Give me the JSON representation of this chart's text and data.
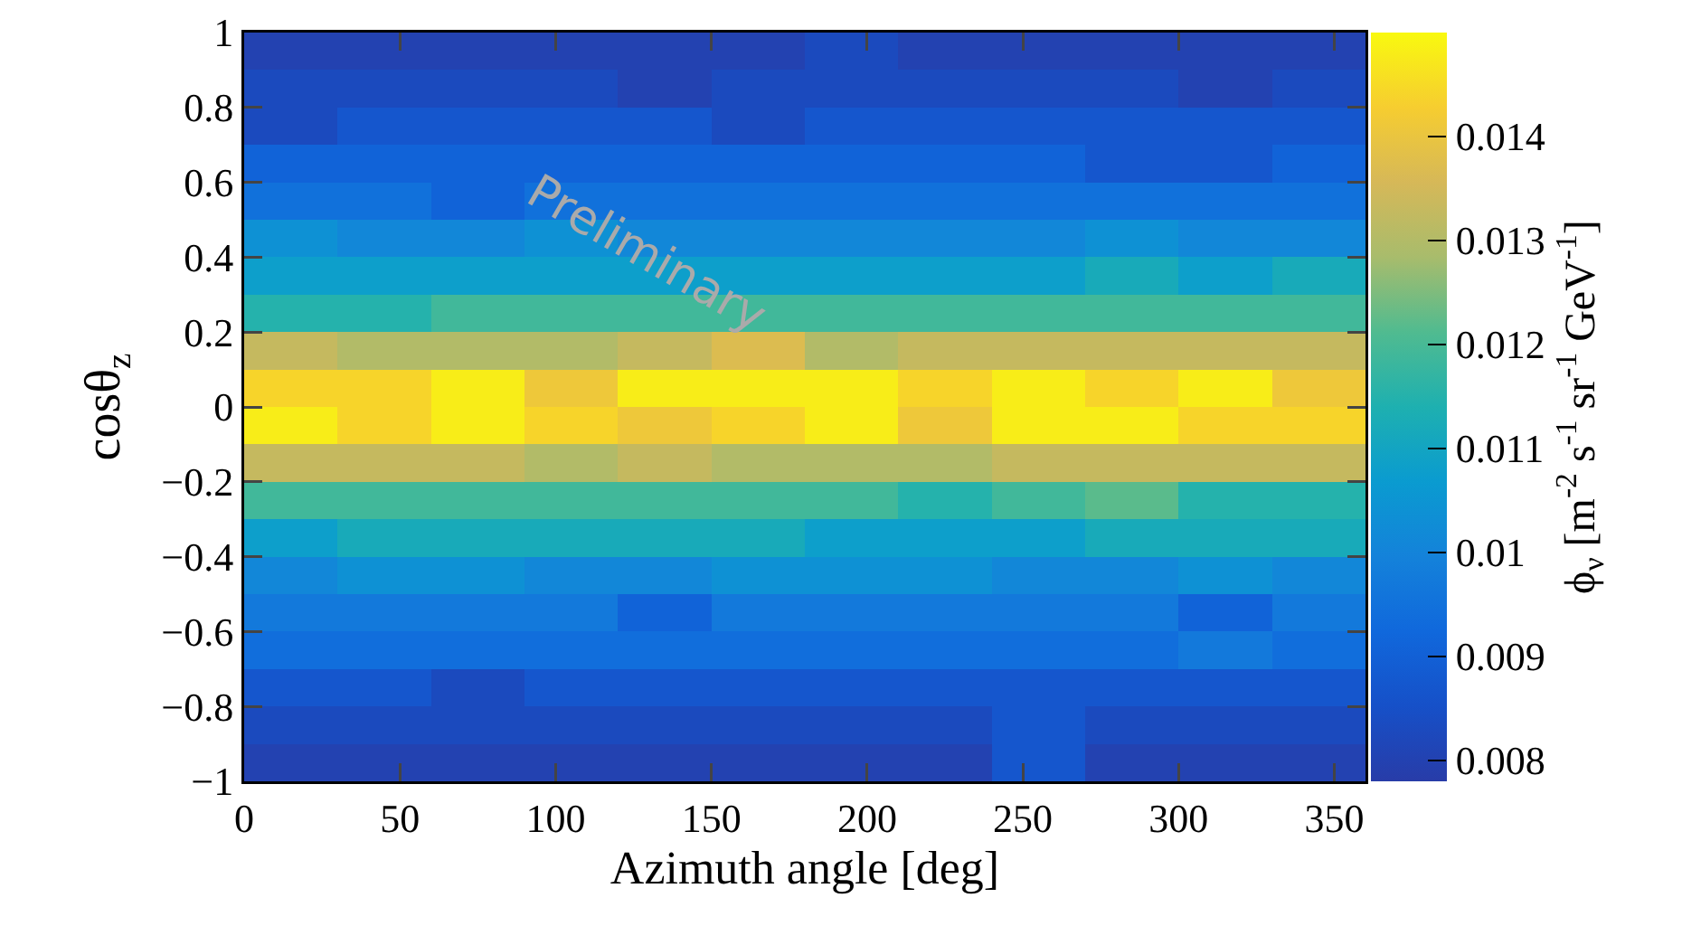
{
  "chart_data": {
    "type": "heatmap",
    "xlabel": "Azimuth angle [deg]",
    "ylabel": "cosθ$_{z}$",
    "clabel": "ϕ$_{ν}$ [m$^{-2}$ s$^{-1}$ sr$^{-1}$ GeV$^{-1}$]",
    "annotations": [
      "Preliminary"
    ],
    "xlim": [
      0,
      360
    ],
    "xticks": [
      0,
      50,
      100,
      150,
      200,
      250,
      300,
      350
    ],
    "ylim": [
      -1,
      1
    ],
    "yticks": [
      -1,
      -0.8,
      -0.6,
      -0.4,
      -0.2,
      0,
      0.2,
      0.4,
      0.6,
      0.8,
      1
    ],
    "clim": [
      0.0078,
      0.015
    ],
    "cticks": [
      0.008,
      0.009,
      0.01,
      0.011,
      0.012,
      0.013,
      0.014
    ],
    "cells": [
      [
        0.008,
        0.008,
        0.008,
        0.008,
        0.008,
        0.008,
        0.0083,
        0.008,
        0.008,
        0.008,
        0.008,
        0.008
      ],
      [
        0.0083,
        0.0083,
        0.0083,
        0.0083,
        0.008,
        0.0083,
        0.0083,
        0.0083,
        0.0083,
        0.0083,
        0.008,
        0.0083
      ],
      [
        0.0083,
        0.0087,
        0.0087,
        0.0087,
        0.0087,
        0.0083,
        0.0087,
        0.0087,
        0.0087,
        0.0087,
        0.0087,
        0.0087
      ],
      [
        0.0091,
        0.0091,
        0.0091,
        0.0091,
        0.0091,
        0.0091,
        0.0091,
        0.0091,
        0.0091,
        0.0087,
        0.0087,
        0.0091
      ],
      [
        0.0095,
        0.0095,
        0.0091,
        0.0095,
        0.0095,
        0.0095,
        0.0095,
        0.0095,
        0.0095,
        0.0095,
        0.0095,
        0.0095
      ],
      [
        0.0104,
        0.0101,
        0.0101,
        0.0104,
        0.0101,
        0.0101,
        0.0101,
        0.0101,
        0.0101,
        0.0104,
        0.0101,
        0.0101
      ],
      [
        0.0108,
        0.0108,
        0.0108,
        0.0108,
        0.0108,
        0.0108,
        0.0108,
        0.0108,
        0.0108,
        0.0112,
        0.0108,
        0.0112
      ],
      [
        0.0115,
        0.0115,
        0.0119,
        0.0119,
        0.0119,
        0.0119,
        0.0119,
        0.0119,
        0.0119,
        0.0119,
        0.0119,
        0.0119
      ],
      [
        0.0133,
        0.013,
        0.013,
        0.013,
        0.0133,
        0.0137,
        0.013,
        0.0133,
        0.0133,
        0.0133,
        0.0133,
        0.0133
      ],
      [
        0.0144,
        0.0144,
        0.0148,
        0.0141,
        0.0148,
        0.0148,
        0.0148,
        0.0144,
        0.0148,
        0.0144,
        0.0148,
        0.0141
      ],
      [
        0.0148,
        0.0144,
        0.0148,
        0.0144,
        0.0141,
        0.0144,
        0.0148,
        0.0141,
        0.0148,
        0.0148,
        0.0144,
        0.0144
      ],
      [
        0.0133,
        0.0133,
        0.0133,
        0.013,
        0.0133,
        0.013,
        0.013,
        0.013,
        0.0133,
        0.0133,
        0.0133,
        0.0133
      ],
      [
        0.0119,
        0.0119,
        0.0119,
        0.0119,
        0.0119,
        0.0119,
        0.0119,
        0.0115,
        0.0119,
        0.0122,
        0.0115,
        0.0115
      ],
      [
        0.0108,
        0.0112,
        0.0112,
        0.0112,
        0.0112,
        0.0112,
        0.0108,
        0.0108,
        0.0108,
        0.0112,
        0.0112,
        0.0112
      ],
      [
        0.0101,
        0.0104,
        0.0104,
        0.0101,
        0.0101,
        0.0104,
        0.0104,
        0.0104,
        0.0101,
        0.0101,
        0.0104,
        0.0101
      ],
      [
        0.0097,
        0.0097,
        0.0097,
        0.0097,
        0.0091,
        0.0097,
        0.0097,
        0.0097,
        0.0097,
        0.0097,
        0.0091,
        0.0097
      ],
      [
        0.0094,
        0.0094,
        0.0094,
        0.0094,
        0.0094,
        0.0094,
        0.0094,
        0.0094,
        0.0094,
        0.0094,
        0.0097,
        0.0094
      ],
      [
        0.0087,
        0.0087,
        0.0083,
        0.0087,
        0.0087,
        0.0087,
        0.0087,
        0.0087,
        0.0087,
        0.0087,
        0.0087,
        0.0087
      ],
      [
        0.0083,
        0.0083,
        0.0083,
        0.0083,
        0.0083,
        0.0083,
        0.0083,
        0.0083,
        0.0087,
        0.0083,
        0.0083,
        0.0083
      ],
      [
        0.008,
        0.008,
        0.008,
        0.008,
        0.008,
        0.008,
        0.008,
        0.008,
        0.0087,
        0.008,
        0.008,
        0.008
      ]
    ]
  }
}
